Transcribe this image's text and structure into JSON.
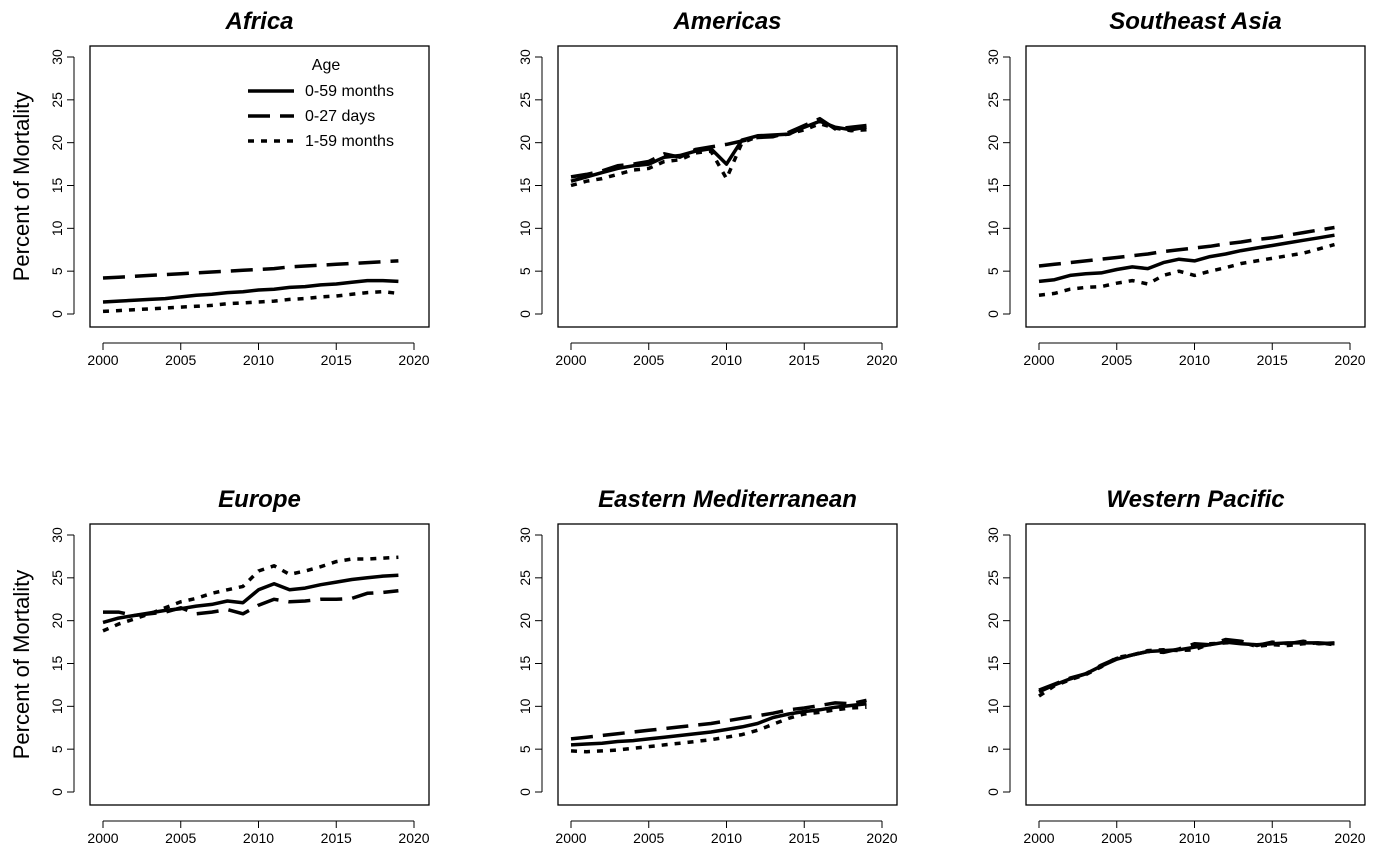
{
  "figure": {
    "y_axis_label": "Percent of Mortality",
    "legend": {
      "title": "Age",
      "placement": "top-right of Africa panel",
      "entries": [
        "0-59 months",
        "0-27 days",
        "1-59 months"
      ]
    },
    "line_styles": {
      "0-59 months": "solid",
      "0-27 days": "long-dash",
      "1-59 months": "dotted"
    },
    "line_color": "#000000"
  },
  "chart_data": [
    {
      "type": "line",
      "title": "Africa",
      "ylabel": "Percent of Mortality",
      "xlim": [
        2000,
        2020
      ],
      "ylim": [
        0,
        30
      ],
      "xticks": [
        2000,
        2005,
        2010,
        2015,
        2020
      ],
      "yticks": [
        0,
        5,
        10,
        15,
        20,
        25,
        30
      ],
      "show_legend": true,
      "x": [
        2000,
        2001,
        2002,
        2003,
        2004,
        2005,
        2006,
        2007,
        2008,
        2009,
        2010,
        2011,
        2012,
        2013,
        2014,
        2015,
        2016,
        2017,
        2018,
        2019
      ],
      "series": [
        {
          "name": "0-59 months",
          "values": [
            1.4,
            1.5,
            1.6,
            1.7,
            1.8,
            2.0,
            2.2,
            2.3,
            2.5,
            2.6,
            2.8,
            2.9,
            3.1,
            3.2,
            3.4,
            3.5,
            3.7,
            3.9,
            3.9,
            3.8
          ]
        },
        {
          "name": "0-27 days",
          "values": [
            4.2,
            4.3,
            4.4,
            4.5,
            4.6,
            4.7,
            4.8,
            4.9,
            5.0,
            5.1,
            5.2,
            5.3,
            5.5,
            5.6,
            5.7,
            5.8,
            5.9,
            6.0,
            6.1,
            6.2
          ]
        },
        {
          "name": "1-59 months",
          "values": [
            0.3,
            0.4,
            0.5,
            0.6,
            0.7,
            0.8,
            0.9,
            1.0,
            1.2,
            1.3,
            1.4,
            1.5,
            1.7,
            1.8,
            2.0,
            2.1,
            2.3,
            2.5,
            2.6,
            2.4
          ]
        }
      ]
    },
    {
      "type": "line",
      "title": "Americas",
      "ylabel": "",
      "xlim": [
        2000,
        2020
      ],
      "ylim": [
        0,
        30
      ],
      "xticks": [
        2000,
        2005,
        2010,
        2015,
        2020
      ],
      "yticks": [
        0,
        5,
        10,
        15,
        20,
        25,
        30
      ],
      "show_legend": false,
      "x": [
        2000,
        2001,
        2002,
        2003,
        2004,
        2005,
        2006,
        2007,
        2008,
        2009,
        2010,
        2011,
        2012,
        2013,
        2014,
        2015,
        2016,
        2017,
        2018,
        2019
      ],
      "series": [
        {
          "name": "0-59 months",
          "values": [
            15.5,
            16.0,
            16.5,
            17.0,
            17.3,
            17.5,
            18.3,
            18.5,
            19.0,
            19.3,
            17.5,
            20.3,
            20.8,
            20.9,
            21.0,
            21.8,
            22.5,
            21.8,
            21.5,
            21.8
          ]
        },
        {
          "name": "0-27 days",
          "values": [
            16.0,
            16.3,
            16.7,
            17.3,
            17.5,
            17.8,
            18.7,
            18.3,
            19.2,
            19.5,
            19.8,
            20.2,
            20.6,
            20.7,
            21.2,
            22.0,
            22.8,
            21.6,
            21.8,
            22.0
          ]
        },
        {
          "name": "1-59 months",
          "values": [
            15.0,
            15.5,
            15.8,
            16.3,
            16.8,
            17.0,
            17.8,
            18.0,
            18.8,
            19.0,
            15.8,
            20.0,
            20.7,
            20.8,
            21.0,
            21.5,
            22.2,
            21.7,
            21.4,
            21.5
          ]
        }
      ]
    },
    {
      "type": "line",
      "title": "Southeast Asia",
      "ylabel": "",
      "xlim": [
        2000,
        2020
      ],
      "ylim": [
        0,
        30
      ],
      "xticks": [
        2000,
        2005,
        2010,
        2015,
        2020
      ],
      "yticks": [
        0,
        5,
        10,
        15,
        20,
        25,
        30
      ],
      "show_legend": false,
      "x": [
        2000,
        2001,
        2002,
        2003,
        2004,
        2005,
        2006,
        2007,
        2008,
        2009,
        2010,
        2011,
        2012,
        2013,
        2014,
        2015,
        2016,
        2017,
        2018,
        2019
      ],
      "series": [
        {
          "name": "0-59 months",
          "values": [
            3.8,
            4.0,
            4.5,
            4.7,
            4.8,
            5.2,
            5.5,
            5.3,
            6.0,
            6.4,
            6.2,
            6.7,
            7.0,
            7.4,
            7.7,
            8.0,
            8.3,
            8.6,
            8.9,
            9.2
          ]
        },
        {
          "name": "0-27 days",
          "values": [
            5.6,
            5.8,
            6.0,
            6.2,
            6.4,
            6.6,
            6.8,
            7.0,
            7.3,
            7.5,
            7.7,
            7.9,
            8.2,
            8.4,
            8.7,
            8.9,
            9.2,
            9.5,
            9.8,
            10.1
          ]
        },
        {
          "name": "1-59 months",
          "values": [
            2.2,
            2.4,
            2.9,
            3.1,
            3.2,
            3.6,
            3.9,
            3.5,
            4.5,
            5.0,
            4.5,
            5.0,
            5.4,
            5.9,
            6.2,
            6.5,
            6.8,
            7.1,
            7.6,
            8.1
          ]
        }
      ]
    },
    {
      "type": "line",
      "title": "Europe",
      "ylabel": "Percent of Mortality",
      "xlim": [
        2000,
        2020
      ],
      "ylim": [
        0,
        30
      ],
      "xticks": [
        2000,
        2005,
        2010,
        2015,
        2020
      ],
      "yticks": [
        0,
        5,
        10,
        15,
        20,
        25,
        30
      ],
      "show_legend": false,
      "x": [
        2000,
        2001,
        2002,
        2003,
        2004,
        2005,
        2006,
        2007,
        2008,
        2009,
        2010,
        2011,
        2012,
        2013,
        2014,
        2015,
        2016,
        2017,
        2018,
        2019
      ],
      "series": [
        {
          "name": "0-59 months",
          "values": [
            19.8,
            20.3,
            20.6,
            20.9,
            21.2,
            21.4,
            21.7,
            21.9,
            22.3,
            22.1,
            23.6,
            24.3,
            23.6,
            23.8,
            24.2,
            24.5,
            24.8,
            25.0,
            25.2,
            25.3
          ]
        },
        {
          "name": "0-27 days",
          "values": [
            21.0,
            21.0,
            20.6,
            20.8,
            21.0,
            21.5,
            20.8,
            21.0,
            21.3,
            20.8,
            21.8,
            22.5,
            22.2,
            22.3,
            22.5,
            22.5,
            22.6,
            23.2,
            23.3,
            23.5
          ]
        },
        {
          "name": "1-59 months",
          "values": [
            18.8,
            19.6,
            20.2,
            20.8,
            21.5,
            22.2,
            22.6,
            23.2,
            23.6,
            24.0,
            25.8,
            26.4,
            25.4,
            25.8,
            26.3,
            26.9,
            27.2,
            27.2,
            27.3,
            27.4
          ]
        }
      ]
    },
    {
      "type": "line",
      "title": "Eastern Mediterranean",
      "ylabel": "",
      "xlim": [
        2000,
        2020
      ],
      "ylim": [
        0,
        30
      ],
      "xticks": [
        2000,
        2005,
        2010,
        2015,
        2020
      ],
      "yticks": [
        0,
        5,
        10,
        15,
        20,
        25,
        30
      ],
      "show_legend": false,
      "x": [
        2000,
        2001,
        2002,
        2003,
        2004,
        2005,
        2006,
        2007,
        2008,
        2009,
        2010,
        2011,
        2012,
        2013,
        2014,
        2015,
        2016,
        2017,
        2018,
        2019
      ],
      "series": [
        {
          "name": "0-59 months",
          "values": [
            5.5,
            5.6,
            5.7,
            5.9,
            6.0,
            6.2,
            6.4,
            6.6,
            6.8,
            7.0,
            7.3,
            7.6,
            8.0,
            8.7,
            9.1,
            9.4,
            9.6,
            9.9,
            10.1,
            10.3
          ]
        },
        {
          "name": "0-27 days",
          "values": [
            6.2,
            6.4,
            6.6,
            6.8,
            7.0,
            7.2,
            7.4,
            7.6,
            7.8,
            8.0,
            8.3,
            8.6,
            8.9,
            9.2,
            9.6,
            9.8,
            10.1,
            10.4,
            10.3,
            10.7
          ]
        },
        {
          "name": "1-59 months",
          "values": [
            4.8,
            4.7,
            4.8,
            4.9,
            5.1,
            5.3,
            5.5,
            5.7,
            5.9,
            6.1,
            6.4,
            6.7,
            7.2,
            7.9,
            8.6,
            9.1,
            9.3,
            9.6,
            9.8,
            9.9
          ]
        }
      ]
    },
    {
      "type": "line",
      "title": "Western Pacific",
      "ylabel": "",
      "xlim": [
        2000,
        2020
      ],
      "ylim": [
        0,
        30
      ],
      "xticks": [
        2000,
        2005,
        2010,
        2015,
        2020
      ],
      "yticks": [
        0,
        5,
        10,
        15,
        20,
        25,
        30
      ],
      "show_legend": false,
      "x": [
        2000,
        2001,
        2002,
        2003,
        2004,
        2005,
        2006,
        2007,
        2008,
        2009,
        2010,
        2011,
        2012,
        2013,
        2014,
        2015,
        2016,
        2017,
        2018,
        2019
      ],
      "series": [
        {
          "name": "0-59 months",
          "values": [
            11.7,
            12.5,
            13.2,
            13.8,
            14.7,
            15.5,
            16.0,
            16.4,
            16.5,
            16.6,
            16.9,
            17.2,
            17.5,
            17.3,
            17.2,
            17.3,
            17.4,
            17.4,
            17.4,
            17.3
          ]
        },
        {
          "name": "0-27 days",
          "values": [
            11.9,
            12.6,
            13.3,
            13.8,
            14.8,
            15.6,
            16.0,
            16.4,
            16.3,
            16.7,
            17.3,
            17.2,
            17.8,
            17.6,
            17.1,
            17.5,
            17.3,
            17.6,
            17.3,
            17.4
          ]
        },
        {
          "name": "1-59 months",
          "values": [
            11.2,
            12.4,
            13.1,
            13.7,
            14.6,
            15.7,
            16.0,
            16.5,
            16.6,
            16.5,
            16.6,
            17.3,
            17.4,
            17.5,
            17.0,
            17.2,
            17.1,
            17.3,
            17.4,
            17.2
          ]
        }
      ]
    }
  ]
}
